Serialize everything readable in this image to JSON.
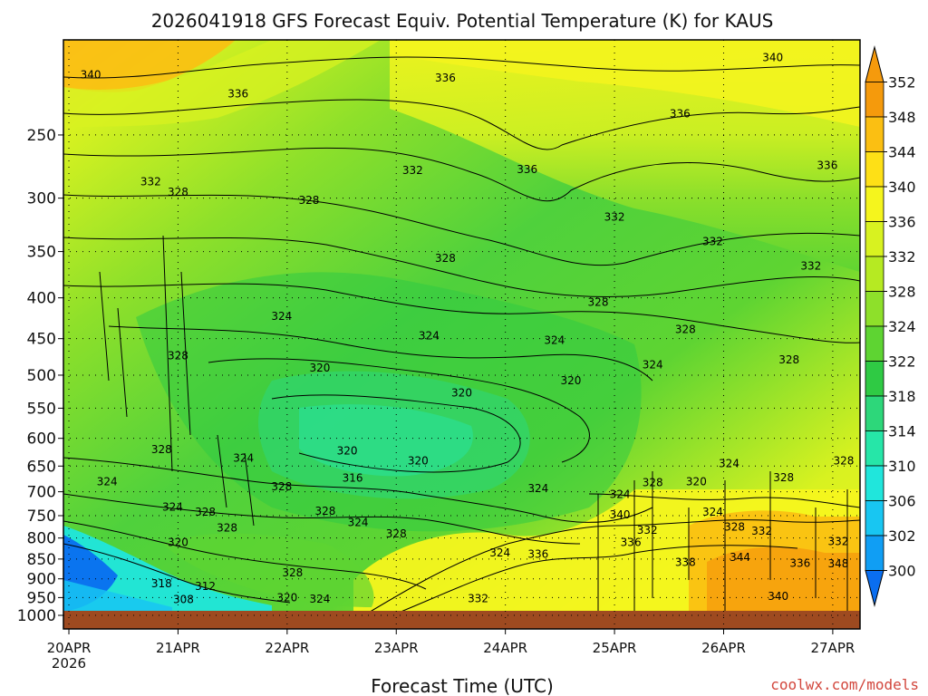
{
  "chart_data": {
    "type": "heatmap",
    "title": "2026041918 GFS Forecast Equiv. Potential Temperature (K) for KAUS",
    "xlabel": "Forecast Time (UTC)",
    "ylabel": "",
    "y_axis": {
      "scale": "log-pressure",
      "range": [
        190,
        1040
      ],
      "ticks": [
        250,
        300,
        350,
        400,
        450,
        500,
        550,
        600,
        650,
        700,
        750,
        800,
        850,
        900,
        950,
        1000
      ]
    },
    "x_axis": {
      "units": "days since 2026-04-20 00 UTC",
      "range": [
        -0.05,
        7.25
      ],
      "ticks": [
        {
          "value": 0,
          "label": "20APR",
          "sublabel": "2026"
        },
        {
          "value": 1,
          "label": "21APR"
        },
        {
          "value": 2,
          "label": "22APR"
        },
        {
          "value": 3,
          "label": "23APR"
        },
        {
          "value": 4,
          "label": "24APR"
        },
        {
          "value": 5,
          "label": "25APR"
        },
        {
          "value": 6,
          "label": "26APR"
        },
        {
          "value": 7,
          "label": "27APR"
        }
      ]
    },
    "colorbar": {
      "units": "K",
      "levels": [
        352,
        348,
        344,
        340,
        336,
        332,
        328,
        324,
        322,
        318,
        314,
        310,
        306,
        302,
        300
      ],
      "colors": [
        "#f59a0c",
        "#fbbf12",
        "#fee016",
        "#f5f51d",
        "#d8f220",
        "#b6ea22",
        "#8ee02a",
        "#5ed432",
        "#2fca44",
        "#2dd77a",
        "#26e6a8",
        "#20e6dc",
        "#18c6f2",
        "#109ef4",
        "#0a6ef0"
      ]
    },
    "contour_labels": [
      {
        "t": 0.2,
        "p": 210,
        "v": "340"
      },
      {
        "t": 1.55,
        "p": 222,
        "v": "336"
      },
      {
        "t": 3.45,
        "p": 212,
        "v": "336"
      },
      {
        "t": 6.45,
        "p": 200,
        "v": "340"
      },
      {
        "t": 5.6,
        "p": 235,
        "v": "336"
      },
      {
        "t": 3.15,
        "p": 277,
        "v": "332"
      },
      {
        "t": 4.2,
        "p": 276,
        "v": "336"
      },
      {
        "t": 6.95,
        "p": 273,
        "v": "336"
      },
      {
        "t": 0.75,
        "p": 286,
        "v": "332"
      },
      {
        "t": 1.0,
        "p": 295,
        "v": "328"
      },
      {
        "t": 2.2,
        "p": 302,
        "v": "328"
      },
      {
        "t": 5.0,
        "p": 317,
        "v": "332"
      },
      {
        "t": 5.9,
        "p": 340,
        "v": "332"
      },
      {
        "t": 3.45,
        "p": 357,
        "v": "328"
      },
      {
        "t": 6.8,
        "p": 365,
        "v": "332"
      },
      {
        "t": 1.95,
        "p": 422,
        "v": "324"
      },
      {
        "t": 4.85,
        "p": 405,
        "v": "328"
      },
      {
        "t": 3.3,
        "p": 446,
        "v": "324"
      },
      {
        "t": 4.45,
        "p": 452,
        "v": "324"
      },
      {
        "t": 5.65,
        "p": 438,
        "v": "328"
      },
      {
        "t": 1.0,
        "p": 473,
        "v": "328"
      },
      {
        "t": 6.6,
        "p": 478,
        "v": "328"
      },
      {
        "t": 5.35,
        "p": 485,
        "v": "324"
      },
      {
        "t": 2.3,
        "p": 490,
        "v": "320"
      },
      {
        "t": 3.6,
        "p": 526,
        "v": "320"
      },
      {
        "t": 4.6,
        "p": 508,
        "v": "320"
      },
      {
        "t": 0.85,
        "p": 620,
        "v": "328"
      },
      {
        "t": 2.55,
        "p": 622,
        "v": "320"
      },
      {
        "t": 1.6,
        "p": 635,
        "v": "324"
      },
      {
        "t": 3.2,
        "p": 640,
        "v": "320"
      },
      {
        "t": 6.05,
        "p": 645,
        "v": "324"
      },
      {
        "t": 7.1,
        "p": 640,
        "v": "328"
      },
      {
        "t": 2.6,
        "p": 673,
        "v": "316"
      },
      {
        "t": 0.35,
        "p": 680,
        "v": "324"
      },
      {
        "t": 6.55,
        "p": 672,
        "v": "328"
      },
      {
        "t": 5.35,
        "p": 682,
        "v": "328"
      },
      {
        "t": 5.75,
        "p": 680,
        "v": "320"
      },
      {
        "t": 1.95,
        "p": 690,
        "v": "328"
      },
      {
        "t": 4.3,
        "p": 693,
        "v": "324"
      },
      {
        "t": 5.05,
        "p": 705,
        "v": "324"
      },
      {
        "t": 0.95,
        "p": 732,
        "v": "324"
      },
      {
        "t": 1.25,
        "p": 742,
        "v": "328"
      },
      {
        "t": 2.35,
        "p": 740,
        "v": "328"
      },
      {
        "t": 5.9,
        "p": 742,
        "v": "324"
      },
      {
        "t": 5.05,
        "p": 748,
        "v": "340"
      },
      {
        "t": 2.65,
        "p": 765,
        "v": "324"
      },
      {
        "t": 1.45,
        "p": 777,
        "v": "328"
      },
      {
        "t": 6.1,
        "p": 775,
        "v": "328"
      },
      {
        "t": 5.3,
        "p": 782,
        "v": "332"
      },
      {
        "t": 6.35,
        "p": 784,
        "v": "332"
      },
      {
        "t": 3.0,
        "p": 790,
        "v": "328"
      },
      {
        "t": 1.0,
        "p": 810,
        "v": "320"
      },
      {
        "t": 5.15,
        "p": 810,
        "v": "336"
      },
      {
        "t": 7.05,
        "p": 808,
        "v": "332"
      },
      {
        "t": 3.95,
        "p": 835,
        "v": "324"
      },
      {
        "t": 4.3,
        "p": 838,
        "v": "336"
      },
      {
        "t": 6.15,
        "p": 846,
        "v": "344"
      },
      {
        "t": 5.65,
        "p": 858,
        "v": "338"
      },
      {
        "t": 6.7,
        "p": 860,
        "v": "336"
      },
      {
        "t": 7.05,
        "p": 862,
        "v": "348"
      },
      {
        "t": 2.05,
        "p": 884,
        "v": "328"
      },
      {
        "t": 0.85,
        "p": 913,
        "v": "318"
      },
      {
        "t": 1.25,
        "p": 920,
        "v": "312"
      },
      {
        "t": 1.05,
        "p": 955,
        "v": "308"
      },
      {
        "t": 2.0,
        "p": 950,
        "v": "320"
      },
      {
        "t": 2.3,
        "p": 954,
        "v": "324"
      },
      {
        "t": 3.75,
        "p": 953,
        "v": "332"
      },
      {
        "t": 6.5,
        "p": 946,
        "v": "340"
      }
    ]
  },
  "credit": "coolwx.com/models"
}
